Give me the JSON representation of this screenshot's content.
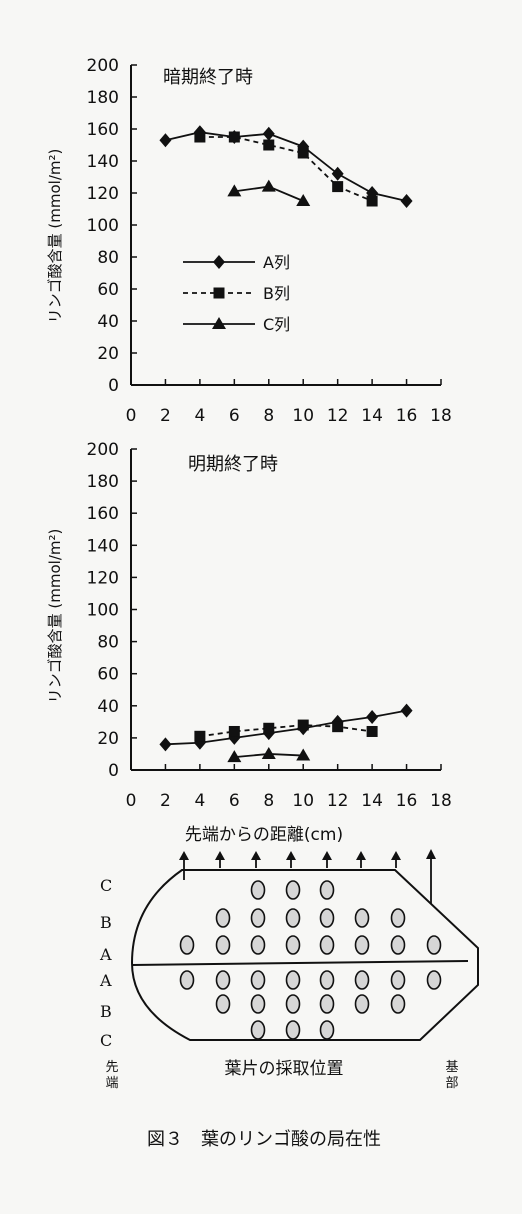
{
  "chart_data": [
    {
      "type": "line",
      "title": "暗期終了時",
      "xlabel": "",
      "ylabel": "リンゴ酸含量 (mmol/m²)",
      "xlim": [
        0,
        18
      ],
      "ylim": [
        0,
        200
      ],
      "xticks": [
        0,
        2,
        4,
        6,
        8,
        10,
        12,
        14,
        16,
        18
      ],
      "yticks": [
        0,
        20,
        40,
        60,
        80,
        100,
        120,
        140,
        160,
        180,
        200
      ],
      "grid": false,
      "legend_position": "center-left",
      "series": [
        {
          "name": "A列",
          "marker": "diamond",
          "line": "solid",
          "x": [
            2,
            4,
            6,
            8,
            10,
            12,
            14,
            16
          ],
          "y": [
            153,
            158,
            155,
            157,
            149,
            132,
            120,
            115
          ]
        },
        {
          "name": "B列",
          "marker": "square",
          "line": "dashed",
          "x": [
            4,
            6,
            8,
            10,
            12,
            14
          ],
          "y": [
            155,
            155,
            150,
            145,
            124,
            115
          ]
        },
        {
          "name": "C列",
          "marker": "triangle",
          "line": "solid",
          "x": [
            6,
            8,
            10
          ],
          "y": [
            121,
            124,
            115
          ]
        }
      ]
    },
    {
      "type": "line",
      "title": "明期終了時",
      "xlabel": "先端からの距離(cm)",
      "ylabel": "リンゴ酸含量 (mmol/m²)",
      "xlim": [
        0,
        18
      ],
      "ylim": [
        0,
        200
      ],
      "xticks": [
        0,
        2,
        4,
        6,
        8,
        10,
        12,
        14,
        16,
        18
      ],
      "yticks": [
        0,
        20,
        40,
        60,
        80,
        100,
        120,
        140,
        160,
        180,
        200
      ],
      "grid": false,
      "series": [
        {
          "name": "A列",
          "marker": "diamond",
          "line": "solid",
          "x": [
            2,
            4,
            6,
            8,
            10,
            12,
            14,
            16
          ],
          "y": [
            16,
            17,
            20,
            23,
            26,
            30,
            33,
            37
          ]
        },
        {
          "name": "B列",
          "marker": "square",
          "line": "dashed",
          "x": [
            4,
            6,
            8,
            10,
            12,
            14
          ],
          "y": [
            21,
            24,
            26,
            28,
            27,
            24
          ]
        },
        {
          "name": "C列",
          "marker": "triangle",
          "line": "solid",
          "x": [
            6,
            8,
            10
          ],
          "y": [
            8,
            10,
            9
          ]
        }
      ]
    }
  ],
  "leaf_diagram": {
    "row_labels": [
      "C",
      "B",
      "A",
      "A",
      "B",
      "C"
    ],
    "tip_label": "先端",
    "base_label": "基部",
    "caption": "葉片の採取位置"
  },
  "figure_caption": "図３　葉のリンゴ酸の局在性"
}
